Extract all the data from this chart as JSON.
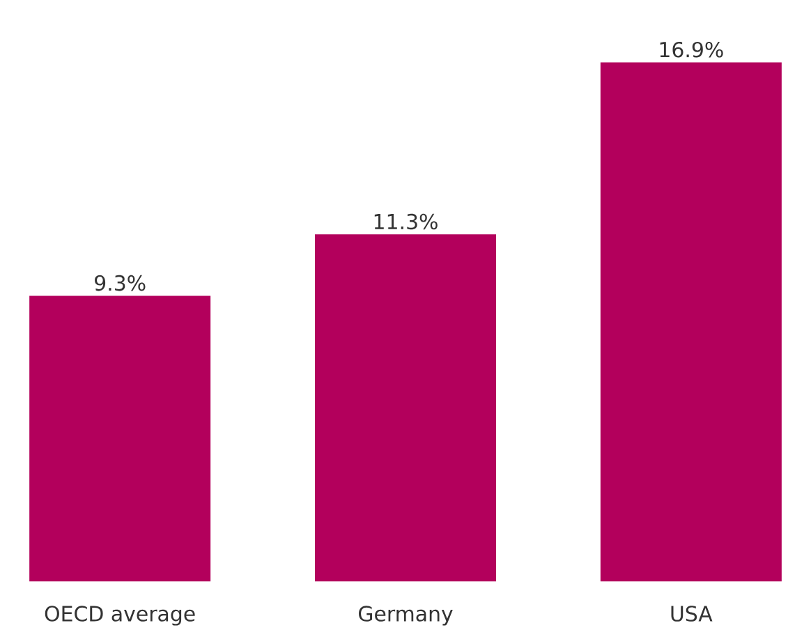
{
  "chart_data": {
    "type": "bar",
    "categories": [
      "OECD average",
      "Germany",
      "USA"
    ],
    "values": [
      9.3,
      11.3,
      16.9
    ],
    "value_labels": [
      "9.3%",
      "11.3%",
      "16.9%"
    ],
    "color": "#b3005c"
  }
}
